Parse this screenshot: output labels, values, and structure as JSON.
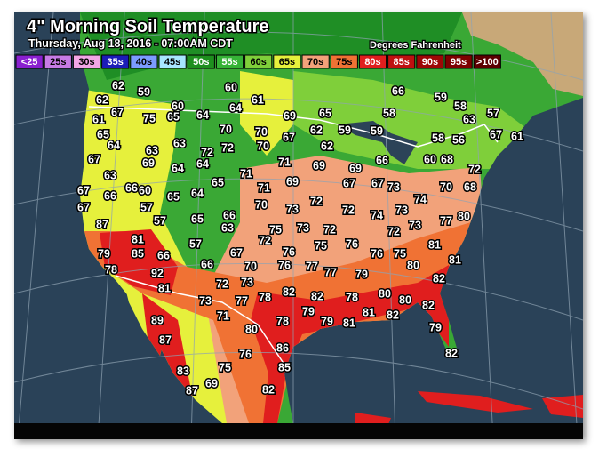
{
  "header": {
    "title": "4\" Morning Soil Temperature",
    "subtitle": "Thursday, Aug 18, 2016 - 07:00AM CDT",
    "units": "Degrees Fahrenheit"
  },
  "legend": [
    {
      "label": "<25",
      "color": "#8a1fd0",
      "text_color": "#fff"
    },
    {
      "label": "25s",
      "color": "#c77be6",
      "text_color": "#000"
    },
    {
      "label": "30s",
      "color": "#f3a6e6",
      "text_color": "#000"
    },
    {
      "label": "35s",
      "color": "#1c1cb8",
      "text_color": "#fff"
    },
    {
      "label": "40s",
      "color": "#7c9cff",
      "text_color": "#000"
    },
    {
      "label": "45s",
      "color": "#a8e6ff",
      "text_color": "#000"
    },
    {
      "label": "50s",
      "color": "#1e8f1e",
      "text_color": "#fff"
    },
    {
      "label": "55s",
      "color": "#36b336",
      "text_color": "#fff"
    },
    {
      "label": "60s",
      "color": "#7fcf3a",
      "text_color": "#000"
    },
    {
      "label": "65s",
      "color": "#e6f03c",
      "text_color": "#000"
    },
    {
      "label": "70s",
      "color": "#f2a27a",
      "text_color": "#000"
    },
    {
      "label": "75s",
      "color": "#f07234",
      "text_color": "#000"
    },
    {
      "label": "80s",
      "color": "#e01e1e",
      "text_color": "#fff"
    },
    {
      "label": "85s",
      "color": "#bf1010",
      "text_color": "#fff"
    },
    {
      "label": "90s",
      "color": "#9e0606",
      "text_color": "#fff"
    },
    {
      "label": "95s",
      "color": "#7e0000",
      "text_color": "#fff"
    },
    {
      "label": ">100",
      "color": "#5c0000",
      "text_color": "#fff"
    }
  ],
  "stations": [
    62,
    59,
    60,
    60,
    61,
    64,
    64,
    65,
    75,
    69,
    65,
    66,
    59,
    58,
    58,
    63,
    57,
    67,
    61,
    62,
    67,
    61,
    65,
    64,
    67,
    63,
    67,
    66,
    66,
    60,
    67,
    57,
    87,
    57,
    65,
    64,
    65,
    66,
    63,
    65,
    64,
    64,
    63,
    63,
    69,
    72,
    70,
    72,
    70,
    70,
    67,
    71,
    71,
    71,
    69,
    69,
    62,
    59,
    59,
    62,
    66,
    69,
    67,
    67,
    73,
    70,
    73,
    72,
    72,
    74,
    73,
    74,
    70,
    68,
    72,
    68,
    56,
    58,
    60,
    80,
    77,
    73,
    72,
    72,
    75,
    76,
    73,
    75,
    72,
    76,
    67,
    66,
    57,
    70,
    76,
    77,
    77,
    79,
    76,
    75,
    81,
    80,
    81,
    82,
    80,
    80,
    78,
    82,
    82,
    78,
    73,
    72,
    77,
    73,
    71,
    81,
    85,
    66,
    79,
    78,
    92,
    81,
    89,
    87,
    80,
    78,
    79,
    79,
    81,
    81,
    82,
    82,
    79,
    82,
    86,
    76,
    75,
    83,
    87,
    69,
    82,
    85
  ]
}
